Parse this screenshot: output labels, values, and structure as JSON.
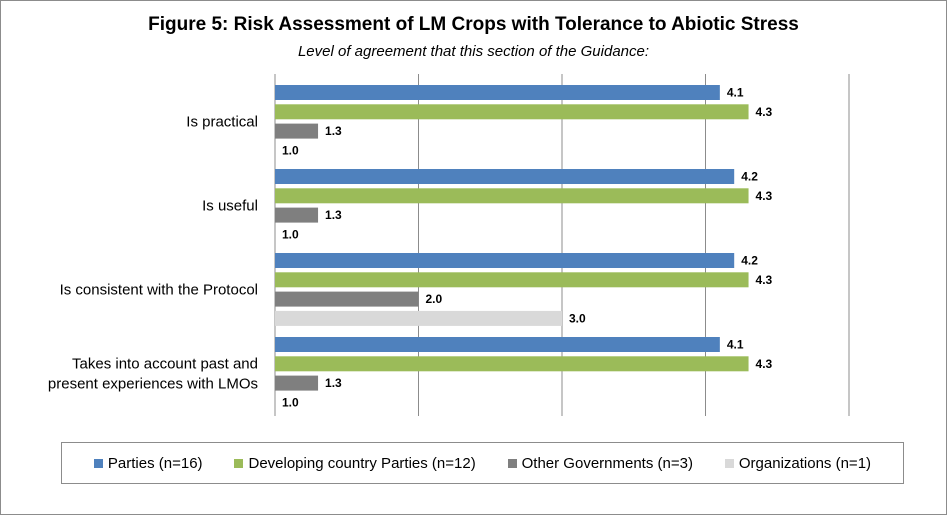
{
  "chart_data": {
    "type": "bar",
    "orientation": "horizontal",
    "title": "Figure 5: Risk Assessment of LM Crops with Tolerance to Abiotic Stress",
    "subtitle": "Level of agreement that this section of the Guidance:",
    "categories": [
      [
        "Is practical"
      ],
      [
        "Is useful"
      ],
      [
        "Is consistent with the Protocol"
      ],
      [
        "Takes into account past and",
        "present experiences with LMOs"
      ]
    ],
    "series": [
      {
        "name": "Parties (n=16)",
        "color": "#4f81bd",
        "values": [
          4.1,
          4.2,
          4.2,
          4.1
        ]
      },
      {
        "name": "Developing country Parties (n=12)",
        "color": "#9bbb59",
        "values": [
          4.3,
          4.3,
          4.3,
          4.3
        ]
      },
      {
        "name": "Other Governments (n=3)",
        "color": "#7f7f7f",
        "values": [
          1.3,
          1.3,
          2.0,
          1.3
        ]
      },
      {
        "name": "Organizations (n=1)",
        "color": "#d9d9d9",
        "values": [
          1.0,
          1.0,
          3.0,
          1.0
        ]
      }
    ],
    "value_labels": [
      [
        "4.1",
        "4.3",
        "1.3",
        "1.0"
      ],
      [
        "4.2",
        "4.3",
        "1.3",
        "1.0"
      ],
      [
        "4.2",
        "4.3",
        "2.0",
        "3.0"
      ],
      [
        "4.1",
        "4.3",
        "1.3",
        "1.0"
      ]
    ],
    "xlim": [
      1,
      5
    ],
    "grid": true,
    "legend_position": "bottom"
  }
}
